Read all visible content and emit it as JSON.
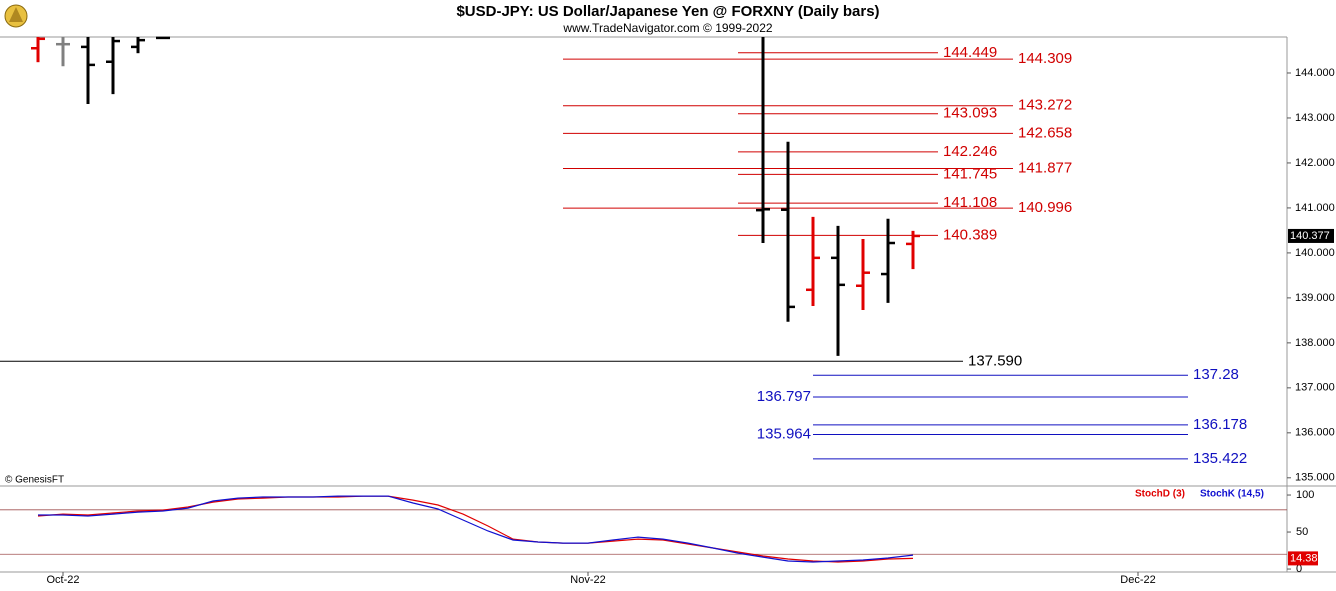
{
  "chart_data": [
    {
      "type": "ohlc",
      "title": "$USD-JPY:  US Dollar/Japanese Yen @ FORXNY  (Daily bars)",
      "subtitle": "www.TradeNavigator.com © 1999-2022",
      "watermark": "© GenesisFT",
      "xlim": [
        -2.52,
        48.96
      ],
      "ylim": [
        134.84,
        144.8
      ],
      "yticks": [
        {
          "value": 135,
          "label": "135.000"
        },
        {
          "value": 136,
          "label": "136.000"
        },
        {
          "value": 137,
          "label": "137.000"
        },
        {
          "value": 138,
          "label": "138.000"
        },
        {
          "value": 139,
          "label": "139.000"
        },
        {
          "value": 140,
          "label": "140.000"
        },
        {
          "value": 141,
          "label": "141.000"
        },
        {
          "value": 142,
          "label": "142.000"
        },
        {
          "value": 143,
          "label": "143.000"
        },
        {
          "value": 144,
          "label": "144.000"
        }
      ],
      "bars": {
        "x": [
          -1,
          0,
          1,
          2,
          3,
          4,
          28,
          29,
          30,
          31,
          32,
          33,
          34
        ],
        "open": [
          144.55,
          144.64,
          144.58,
          144.25,
          144.58,
          144.78,
          140.95,
          140.96,
          139.18,
          139.89,
          139.27,
          139.53,
          140.2
        ],
        "high": [
          144.8,
          144.8,
          144.8,
          144.8,
          144.8,
          144.8,
          144.8,
          142.47,
          140.8,
          140.6,
          140.31,
          140.76,
          140.49
        ],
        "low": [
          144.24,
          144.15,
          143.31,
          143.53,
          144.44,
          144.78,
          140.22,
          138.47,
          138.82,
          137.71,
          138.73,
          138.89,
          139.64
        ],
        "close": [
          144.76,
          144.64,
          144.18,
          144.71,
          144.73,
          144.78,
          140.97,
          138.8,
          139.89,
          139.29,
          139.56,
          140.22,
          140.377
        ],
        "colors": [
          "#e00000",
          "#808080",
          "#000000",
          "#000000",
          "#000000",
          "#000000",
          "#000000",
          "#000000",
          "#e00000",
          "#000000",
          "#e00000",
          "#000000",
          "#e00000"
        ]
      },
      "levels": [
        {
          "value": 144.449,
          "color": "#d00000",
          "from": 27,
          "to": 35,
          "side": "right"
        },
        {
          "value": 144.309,
          "color": "#d00000",
          "from": 20,
          "to": 38,
          "side": "right"
        },
        {
          "value": 143.272,
          "color": "#d00000",
          "from": 20,
          "to": 38,
          "side": "right"
        },
        {
          "value": 143.093,
          "color": "#d00000",
          "from": 27,
          "to": 35,
          "side": "right"
        },
        {
          "value": 142.658,
          "color": "#d00000",
          "from": 20,
          "to": 38,
          "side": "right"
        },
        {
          "value": 142.246,
          "color": "#d00000",
          "from": 27,
          "to": 35,
          "side": "right"
        },
        {
          "value": 141.877,
          "color": "#d00000",
          "from": 20,
          "to": 38,
          "side": "right"
        },
        {
          "value": 141.745,
          "color": "#d00000",
          "from": 27,
          "to": 35,
          "side": "right"
        },
        {
          "value": 141.108,
          "color": "#d00000",
          "from": 27,
          "to": 35,
          "side": "right"
        },
        {
          "value": 140.996,
          "color": "#d00000",
          "from": 20,
          "to": 38,
          "side": "right"
        },
        {
          "value": 140.389,
          "color": "#d00000",
          "from": 27,
          "to": 35,
          "side": "right"
        },
        {
          "value": 137.59,
          "label": "137.590",
          "color": "#000000",
          "from": -2.52,
          "to": 36,
          "side": "right"
        },
        {
          "value": 137.28,
          "color": "#1010c0",
          "from": 30,
          "to": 45,
          "side": "right"
        },
        {
          "value": 136.797,
          "color": "#1010c0",
          "from": 30,
          "to": 45,
          "side": "left"
        },
        {
          "value": 136.178,
          "color": "#1010c0",
          "from": 30,
          "to": 45,
          "side": "right"
        },
        {
          "value": 135.964,
          "color": "#1010c0",
          "from": 30,
          "to": 45,
          "side": "left"
        },
        {
          "value": 135.422,
          "color": "#1010c0",
          "from": 30,
          "to": 45,
          "side": "right"
        }
      ]
    },
    {
      "type": "line",
      "xlim": [
        -2.52,
        48.96
      ],
      "xticks": [
        {
          "value": 0,
          "label": "Oct-22"
        },
        {
          "value": 21,
          "label": "Nov-22"
        },
        {
          "value": 43,
          "label": "Dec-22"
        }
      ],
      "ylim": [
        -4,
        109.5
      ],
      "yticks": [
        0,
        50,
        100
      ],
      "reference_lines": [
        20,
        80
      ],
      "x": [
        -1,
        0,
        1,
        2,
        3,
        4,
        5,
        6,
        7,
        8,
        9,
        10,
        11,
        12,
        13,
        14,
        15,
        16,
        17,
        18,
        19,
        20,
        21,
        22,
        23,
        24,
        25,
        26,
        27,
        28,
        29,
        30,
        31,
        32,
        33,
        34
      ],
      "series": [
        {
          "name": "StochD (3)",
          "color": "#e00000",
          "values": [
            71.6,
            74.3,
            73,
            75.7,
            78.4,
            79.7,
            83.8,
            90.5,
            94.6,
            95.9,
            97.3,
            97.3,
            97.3,
            98.6,
            98.6,
            93.2,
            86.5,
            74.3,
            58.1,
            40.5,
            36.5,
            35.1,
            35.1,
            37.8,
            40.5,
            39.2,
            33.8,
            28.4,
            23,
            17.6,
            13.5,
            10.8,
            9.5,
            10.8,
            13.5,
            14.38
          ]
        },
        {
          "name": "StochK (14,5)",
          "color": "#1010d0",
          "values": [
            73,
            73,
            71.6,
            74.3,
            77,
            78.4,
            82.4,
            91.9,
            95.9,
            97.3,
            97.3,
            97.3,
            98.6,
            98.6,
            98.6,
            89.2,
            81.1,
            66.2,
            51.4,
            39.2,
            36.5,
            35.1,
            35.1,
            39.2,
            43.2,
            40.5,
            35.1,
            28.4,
            21.6,
            16.2,
            10.8,
            9.5,
            10.8,
            12.2,
            14.9,
            18.9
          ]
        }
      ]
    }
  ]
}
